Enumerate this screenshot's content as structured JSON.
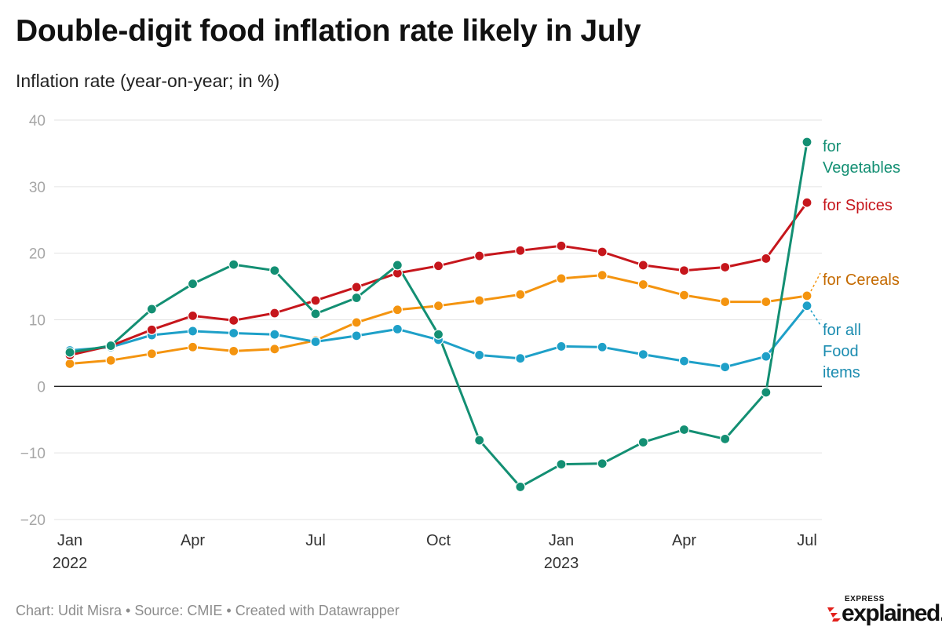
{
  "title": "Double-digit food inflation rate likely in July",
  "subtitle": "Inflation rate (year-on-year; in %)",
  "footer": {
    "chart_credit": "Chart: Udit Misra",
    "source": "Source: CMIE",
    "tool": "Created with Datawrapper",
    "separator": " • "
  },
  "logo": {
    "top": "EXPRESS",
    "main": "explained."
  },
  "chart_data": {
    "type": "line",
    "x": [
      "2022-01",
      "2022-02",
      "2022-03",
      "2022-04",
      "2022-05",
      "2022-06",
      "2022-07",
      "2022-08",
      "2022-09",
      "2022-10",
      "2022-11",
      "2022-12",
      "2023-01",
      "2023-02",
      "2023-03",
      "2023-04",
      "2023-05",
      "2023-06",
      "2023-07"
    ],
    "x_ticks": [
      {
        "x": "2022-01",
        "label": "Jan",
        "sublabel": "2022"
      },
      {
        "x": "2022-04",
        "label": "Apr"
      },
      {
        "x": "2022-07",
        "label": "Jul"
      },
      {
        "x": "2022-10",
        "label": "Oct"
      },
      {
        "x": "2023-01",
        "label": "Jan",
        "sublabel": "2023"
      },
      {
        "x": "2023-04",
        "label": "Apr"
      },
      {
        "x": "2023-07",
        "label": "Jul"
      }
    ],
    "ylim": [
      -20,
      40
    ],
    "yticks": [
      {
        "value": 40,
        "label": "40"
      },
      {
        "value": 30,
        "label": "30"
      },
      {
        "value": 20,
        "label": "20"
      },
      {
        "value": 10,
        "label": "10"
      },
      {
        "value": 0,
        "label": "0"
      },
      {
        "value": -10,
        "label": "−10"
      },
      {
        "value": -20,
        "label": "−20"
      }
    ],
    "grid": true,
    "series": [
      {
        "key": "cereals",
        "label_lines": [
          "for Cereals"
        ],
        "color": "#f4940f",
        "label_color": "#c46a00",
        "values": [
          3.4,
          3.9,
          4.9,
          5.9,
          5.3,
          5.6,
          6.9,
          9.6,
          11.5,
          12.1,
          12.9,
          13.8,
          16.2,
          16.7,
          15.3,
          13.7,
          12.7,
          12.7,
          13.6
        ]
      },
      {
        "key": "food",
        "label_lines": [
          "for all",
          "Food",
          "items"
        ],
        "color": "#1ea0c8",
        "label_color": "#1b8cb0",
        "values": [
          5.4,
          5.9,
          7.7,
          8.3,
          8.0,
          7.8,
          6.7,
          7.6,
          8.6,
          7.0,
          4.7,
          4.2,
          6.0,
          5.9,
          4.8,
          3.8,
          2.9,
          4.5,
          12.1
        ]
      },
      {
        "key": "spices",
        "label_lines": [
          "for Spices"
        ],
        "color": "#c6161c",
        "label_color": "#c6161c",
        "values": [
          4.7,
          6.1,
          8.5,
          10.6,
          9.9,
          11.0,
          12.9,
          14.9,
          17.0,
          18.1,
          19.6,
          20.4,
          21.1,
          20.2,
          18.2,
          17.4,
          17.9,
          19.2,
          27.6
        ]
      },
      {
        "key": "vegetables",
        "label_lines": [
          "for",
          "Vegetables"
        ],
        "color": "#138f73",
        "label_color": "#138f73",
        "values": [
          5.1,
          6.1,
          11.6,
          15.4,
          18.3,
          17.4,
          10.9,
          13.3,
          18.2,
          7.8,
          -8.1,
          -15.1,
          -11.7,
          -11.6,
          -8.4,
          -6.5,
          -7.9,
          -0.9,
          36.7
        ]
      }
    ]
  }
}
